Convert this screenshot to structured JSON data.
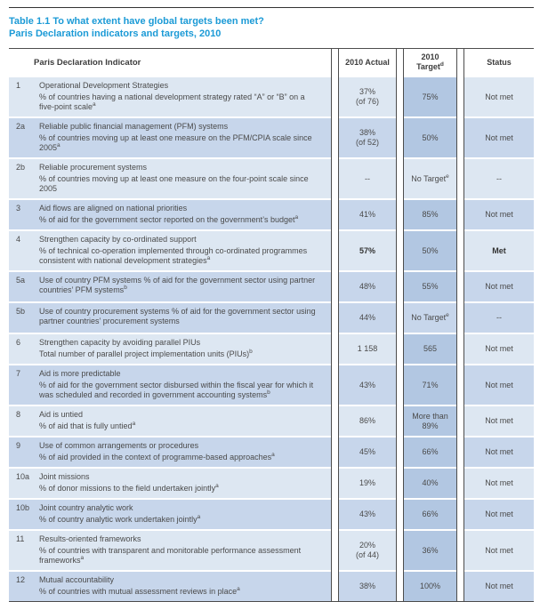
{
  "page": {
    "title_line1": "Table 1.1  To what extent have global targets been met?",
    "title_line2": "Paris Declaration indicators and targets, 2010"
  },
  "table": {
    "header": {
      "indicator": "Paris Declaration Indicator",
      "actual": "2010 Actual",
      "target_line1": "2010",
      "target_line2": "Target",
      "target_sup": "d",
      "status": "Status"
    },
    "rows": [
      {
        "id": "1",
        "title": "Operational Development Strategies",
        "title_sup": "",
        "desc": "% of countries having a national development strategy rated “A” or “B” on a five-point scale",
        "desc_sup": "a",
        "actual": "37%",
        "actual_note": "(of 76)",
        "target": "75%",
        "target_sup": "",
        "status": "Not met",
        "shade": "light",
        "bold": false,
        "no_target": false
      },
      {
        "id": "2a",
        "title": "Reliable public financial management (PFM) systems",
        "title_sup": "",
        "desc": "% of countries moving up at least one measure on the PFM/CPIA scale since 2005",
        "desc_sup": "a",
        "actual": "38%",
        "actual_note": "(of 52)",
        "target": "50%",
        "target_sup": "",
        "status": "Not met",
        "shade": "dark",
        "bold": false,
        "no_target": false
      },
      {
        "id": "2b",
        "title": "Reliable procurement systems",
        "title_sup": "",
        "desc": "% of countries moving up at least one measure on the four-point scale since 2005",
        "desc_sup": "",
        "actual": "--",
        "actual_note": "",
        "target": "No Target",
        "target_sup": "e",
        "status": "--",
        "shade": "light",
        "bold": false,
        "no_target": true
      },
      {
        "id": "3",
        "title": "Aid flows are aligned on national priorities",
        "title_sup": "",
        "desc": "% of aid for the government sector reported on the government’s budget",
        "desc_sup": "a",
        "actual": "41%",
        "actual_note": "",
        "target": "85%",
        "target_sup": "",
        "status": "Not met",
        "shade": "dark",
        "bold": false,
        "no_target": false
      },
      {
        "id": "4",
        "title": "Strengthen capacity by co-ordinated support",
        "title_sup": "",
        "desc": "% of technical co-operation implemented through co-ordinated programmes consistent with national development strategies",
        "desc_sup": "a",
        "actual": "57%",
        "actual_note": "",
        "target": "50%",
        "target_sup": "",
        "status": "Met",
        "shade": "light",
        "bold": true,
        "no_target": false
      },
      {
        "id": "5a",
        "title": "Use of country PFM systems % of aid for the government sector using partner countries’ PFM systems",
        "title_sup": "b",
        "desc": "",
        "desc_sup": "",
        "actual": "48%",
        "actual_note": "",
        "target": "55%",
        "target_sup": "",
        "status": "Not met",
        "shade": "dark",
        "bold": false,
        "no_target": false
      },
      {
        "id": "5b",
        "title": "Use of country procurement systems % of aid for the government sector using partner countries’ procurement systems",
        "title_sup": "",
        "desc": "",
        "desc_sup": "",
        "actual": "44%",
        "actual_note": "",
        "target": "No Target",
        "target_sup": "e",
        "status": "--",
        "shade": "dark",
        "bold": false,
        "no_target": true
      },
      {
        "id": "6",
        "title": "Strengthen capacity by avoiding parallel PIUs",
        "title_sup": "",
        "desc": "Total number of parallel project implementation units (PIUs)",
        "desc_sup": "b",
        "actual": "1 158",
        "actual_note": "",
        "target": "565",
        "target_sup": "",
        "status": "Not met",
        "shade": "light",
        "bold": false,
        "no_target": false
      },
      {
        "id": "7",
        "title": "Aid is more predictable",
        "title_sup": "",
        "desc": "% of aid for the government sector disbursed within the fiscal year for which it was scheduled and recorded in government accounting systems",
        "desc_sup": "b",
        "actual": "43%",
        "actual_note": "",
        "target": "71%",
        "target_sup": "",
        "status": "Not met",
        "shade": "dark",
        "bold": false,
        "no_target": false
      },
      {
        "id": "8",
        "title": "Aid is untied",
        "title_sup": "",
        "desc": "% of aid that is fully untied",
        "desc_sup": "a",
        "actual": "86%",
        "actual_note": "",
        "target": "More than 89%",
        "target_sup": "",
        "status": "Not met",
        "shade": "light",
        "bold": false,
        "no_target": false
      },
      {
        "id": "9",
        "title": "Use of common arrangements or procedures",
        "title_sup": "",
        "desc": "% of aid provided in the context of programme-based approaches",
        "desc_sup": "a",
        "actual": "45%",
        "actual_note": "",
        "target": "66%",
        "target_sup": "",
        "status": "Not met",
        "shade": "dark",
        "bold": false,
        "no_target": false
      },
      {
        "id": "10a",
        "title": "Joint missions",
        "title_sup": "",
        "desc": "% of donor missions to the field undertaken jointly",
        "desc_sup": "a",
        "actual": "19%",
        "actual_note": "",
        "target": "40%",
        "target_sup": "",
        "status": "Not met",
        "shade": "light",
        "bold": false,
        "no_target": false
      },
      {
        "id": "10b",
        "title": "Joint country analytic work",
        "title_sup": "",
        "desc": "% of country analytic work undertaken jointly",
        "desc_sup": "a",
        "actual": "43%",
        "actual_note": "",
        "target": "66%",
        "target_sup": "",
        "status": "Not met",
        "shade": "dark",
        "bold": false,
        "no_target": false
      },
      {
        "id": "11",
        "title": "Results-oriented frameworks",
        "title_sup": "",
        "desc": "% of countries with transparent and monitorable performance assessment frameworks",
        "desc_sup": "a",
        "actual": "20%",
        "actual_note": "(of 44)",
        "target": "36%",
        "target_sup": "",
        "status": "Not met",
        "shade": "light",
        "bold": false,
        "no_target": false
      },
      {
        "id": "12",
        "title": "Mutual accountability",
        "title_sup": "",
        "desc": "% of countries with mutual assessment reviews in place",
        "desc_sup": "a",
        "actual": "38%",
        "actual_note": "",
        "target": "100%",
        "target_sup": "",
        "status": "Not met",
        "shade": "dark",
        "bold": false,
        "no_target": false
      }
    ]
  },
  "colors": {
    "title_blue": "#1b9ad6",
    "stripe_light": "#dde7f2",
    "stripe_dark": "#c7d6eb",
    "target_highlight": "#b2c7e2",
    "rule_dark": "#4d4d4d"
  }
}
